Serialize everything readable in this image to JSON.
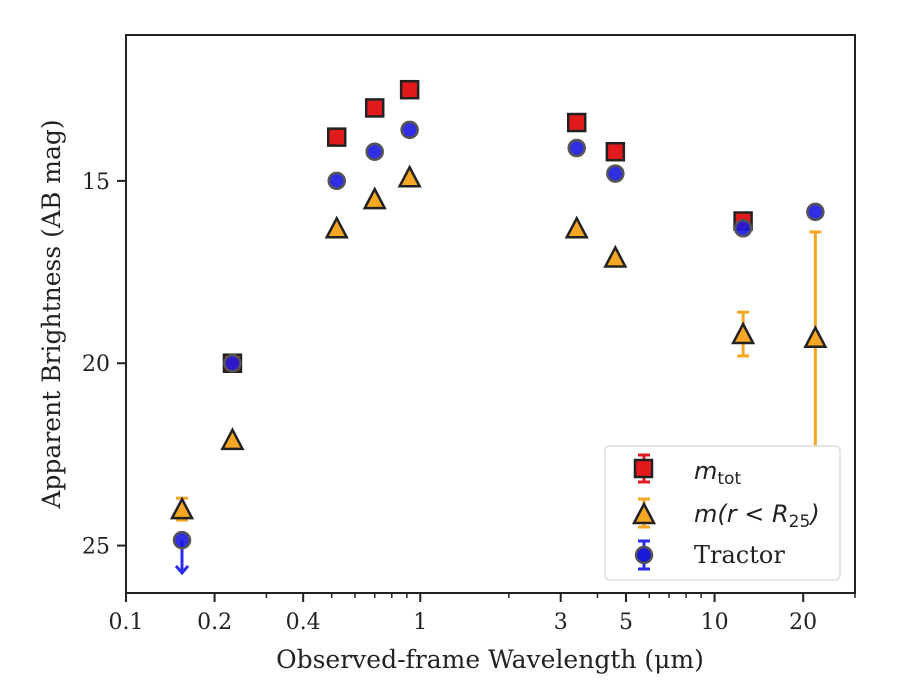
{
  "chart_data": {
    "type": "scatter",
    "xlabel": "Observed-frame Wavelength (μm)",
    "ylabel": "Apparent Brightness (AB mag)",
    "xscale": "log",
    "xlim": [
      0.1,
      30
    ],
    "ylim": [
      26.3,
      11.0
    ],
    "y_inverted": true,
    "x_ticks": [
      {
        "value": 0.1,
        "label": "0.1"
      },
      {
        "value": 0.2,
        "label": "0.2"
      },
      {
        "value": 0.4,
        "label": "0.4"
      },
      {
        "value": 1,
        "label": "1"
      },
      {
        "value": 3,
        "label": "3"
      },
      {
        "value": 5,
        "label": "5"
      },
      {
        "value": 10,
        "label": "10"
      },
      {
        "value": 20,
        "label": "20"
      }
    ],
    "y_ticks": [
      {
        "value": 15,
        "label": "15"
      },
      {
        "value": 20,
        "label": "20"
      },
      {
        "value": 25,
        "label": "25"
      }
    ],
    "legend_position": "lower-right",
    "series": [
      {
        "name": "m_tot",
        "legend_main": "m",
        "legend_sub": "tot",
        "marker": "square",
        "color": "#e31a1c",
        "error_color": "#e31a1c",
        "points": [
          {
            "x": 0.23,
            "y": 20.0
          },
          {
            "x": 0.52,
            "y": 13.8
          },
          {
            "x": 0.7,
            "y": 13.0
          },
          {
            "x": 0.92,
            "y": 12.5
          },
          {
            "x": 3.4,
            "y": 13.4
          },
          {
            "x": 4.6,
            "y": 14.2
          },
          {
            "x": 12.5,
            "y": 16.1
          }
        ]
      },
      {
        "name": "m(r < R25)",
        "legend_main": "m",
        "legend_mid": "(r < R",
        "legend_sub": "25",
        "legend_end": ")",
        "marker": "triangle",
        "color": "#f5a623",
        "error_color": "#f5a623",
        "points": [
          {
            "x": 0.155,
            "y": 24.0,
            "yerr": 0.3
          },
          {
            "x": 0.23,
            "y": 22.1
          },
          {
            "x": 0.52,
            "y": 16.3
          },
          {
            "x": 0.7,
            "y": 15.5
          },
          {
            "x": 0.92,
            "y": 14.9
          },
          {
            "x": 3.4,
            "y": 16.3
          },
          {
            "x": 4.6,
            "y": 17.1
          },
          {
            "x": 12.5,
            "y": 19.2,
            "yerr": 0.6
          },
          {
            "x": 22.0,
            "y": 19.3,
            "yerr_low": 2.9,
            "yerr_high": 3.0
          }
        ]
      },
      {
        "name": "Tractor",
        "marker": "circle",
        "color": "#1a1adf",
        "error_color": "#2a2aef",
        "points": [
          {
            "x": 0.155,
            "y": 24.85,
            "upper_limit": true
          },
          {
            "x": 0.23,
            "y": 20.0
          },
          {
            "x": 0.52,
            "y": 15.0
          },
          {
            "x": 0.7,
            "y": 14.2
          },
          {
            "x": 0.92,
            "y": 13.6
          },
          {
            "x": 3.4,
            "y": 14.1
          },
          {
            "x": 4.6,
            "y": 14.8
          },
          {
            "x": 12.5,
            "y": 16.3
          },
          {
            "x": 22.0,
            "y": 15.85
          }
        ]
      }
    ]
  }
}
